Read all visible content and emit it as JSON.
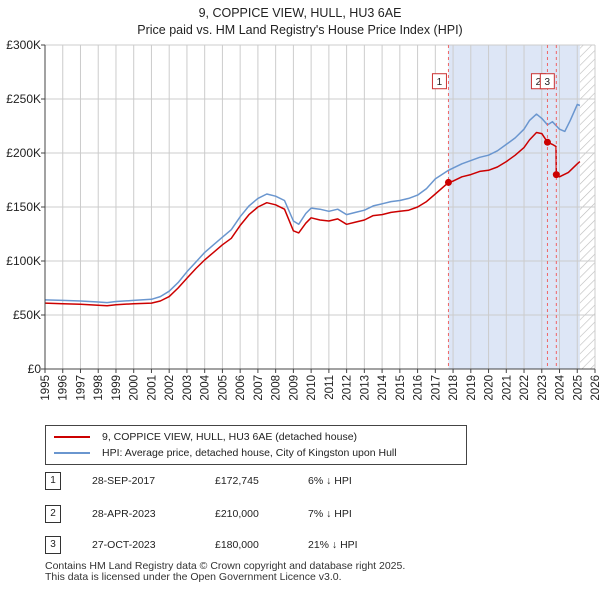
{
  "title": {
    "line1": "9, COPPICE VIEW, HULL, HU3 6AE",
    "line2": "Price paid vs. HM Land Registry's House Price Index (HPI)"
  },
  "colors": {
    "price_line": "#cc0000",
    "hpi_line": "#6a96cf",
    "shade": "#dde6f6",
    "grid": "#cccccc",
    "marker_line": "#ee6666"
  },
  "chart_data": {
    "type": "line",
    "xlim": [
      1995.0,
      2026.0
    ],
    "ylim": [
      0,
      300000
    ],
    "y_ticks": [
      {
        "value": 0,
        "label": "£0"
      },
      {
        "value": 50000,
        "label": "£50K"
      },
      {
        "value": 100000,
        "label": "£100K"
      },
      {
        "value": 150000,
        "label": "£150K"
      },
      {
        "value": 200000,
        "label": "£200K"
      },
      {
        "value": 250000,
        "label": "£250K"
      },
      {
        "value": 300000,
        "label": "£300K"
      }
    ],
    "x_ticks": [
      "1995",
      "1996",
      "1997",
      "1998",
      "1999",
      "2000",
      "2001",
      "2002",
      "2003",
      "2004",
      "2005",
      "2006",
      "2007",
      "2008",
      "2009",
      "2010",
      "2011",
      "2012",
      "2013",
      "2014",
      "2015",
      "2016",
      "2017",
      "2018",
      "2019",
      "2020",
      "2021",
      "2022",
      "2023",
      "2024",
      "2025",
      "2026"
    ],
    "shaded_range": [
      2017.74,
      2025.15
    ],
    "hatched_from": 2025.15,
    "series": [
      {
        "name": "9, COPPICE VIEW, HULL, HU3 6AE (detached house)",
        "color": "#cc0000",
        "points": [
          [
            1995.0,
            61000
          ],
          [
            1996.0,
            60500
          ],
          [
            1997.0,
            60000
          ],
          [
            1998.0,
            59000
          ],
          [
            1998.5,
            58500
          ],
          [
            1999.0,
            59500
          ],
          [
            2000.0,
            60500
          ],
          [
            2001.0,
            61000
          ],
          [
            2001.5,
            63000
          ],
          [
            2002.0,
            67000
          ],
          [
            2002.5,
            75000
          ],
          [
            2003.0,
            84000
          ],
          [
            2003.5,
            93000
          ],
          [
            2004.0,
            101000
          ],
          [
            2004.5,
            108000
          ],
          [
            2005.0,
            115000
          ],
          [
            2005.5,
            121000
          ],
          [
            2006.0,
            133000
          ],
          [
            2006.5,
            143000
          ],
          [
            2007.0,
            150000
          ],
          [
            2007.5,
            154000
          ],
          [
            2008.0,
            152000
          ],
          [
            2008.5,
            148000
          ],
          [
            2009.0,
            128000
          ],
          [
            2009.3,
            126000
          ],
          [
            2009.7,
            135000
          ],
          [
            2010.0,
            140000
          ],
          [
            2010.5,
            138000
          ],
          [
            2011.0,
            137000
          ],
          [
            2011.5,
            139000
          ],
          [
            2012.0,
            134000
          ],
          [
            2012.5,
            136000
          ],
          [
            2013.0,
            138000
          ],
          [
            2013.5,
            142000
          ],
          [
            2014.0,
            143000
          ],
          [
            2014.5,
            145000
          ],
          [
            2015.0,
            146000
          ],
          [
            2015.5,
            147000
          ],
          [
            2016.0,
            150000
          ],
          [
            2016.5,
            155000
          ],
          [
            2017.0,
            162000
          ],
          [
            2017.74,
            172745
          ],
          [
            2018.0,
            174000
          ],
          [
            2018.5,
            178000
          ],
          [
            2019.0,
            180000
          ],
          [
            2019.5,
            183000
          ],
          [
            2020.0,
            184000
          ],
          [
            2020.5,
            187000
          ],
          [
            2021.0,
            192000
          ],
          [
            2021.5,
            198000
          ],
          [
            2022.0,
            205000
          ],
          [
            2022.3,
            212000
          ],
          [
            2022.7,
            219000
          ],
          [
            2023.0,
            218000
          ],
          [
            2023.32,
            210000
          ],
          [
            2023.6,
            208000
          ],
          [
            2023.8,
            206000
          ],
          [
            2023.82,
            180000
          ],
          [
            2024.0,
            178000
          ],
          [
            2024.5,
            182000
          ],
          [
            2025.0,
            190000
          ],
          [
            2025.15,
            192000
          ]
        ]
      },
      {
        "name": "HPI: Average price, detached house, City of Kingston upon Hull",
        "color": "#6a96cf",
        "points": [
          [
            1995.0,
            64000
          ],
          [
            1996.0,
            63500
          ],
          [
            1997.0,
            63000
          ],
          [
            1998.0,
            62000
          ],
          [
            1998.5,
            61500
          ],
          [
            1999.0,
            62500
          ],
          [
            2000.0,
            63500
          ],
          [
            2001.0,
            64500
          ],
          [
            2001.5,
            67000
          ],
          [
            2002.0,
            72000
          ],
          [
            2002.5,
            80000
          ],
          [
            2003.0,
            90000
          ],
          [
            2003.5,
            99000
          ],
          [
            2004.0,
            108000
          ],
          [
            2004.5,
            115000
          ],
          [
            2005.0,
            122000
          ],
          [
            2005.5,
            129000
          ],
          [
            2006.0,
            141000
          ],
          [
            2006.5,
            151000
          ],
          [
            2007.0,
            158000
          ],
          [
            2007.5,
            162000
          ],
          [
            2008.0,
            160000
          ],
          [
            2008.5,
            156000
          ],
          [
            2009.0,
            137000
          ],
          [
            2009.3,
            134000
          ],
          [
            2009.7,
            144000
          ],
          [
            2010.0,
            149000
          ],
          [
            2010.5,
            148000
          ],
          [
            2011.0,
            146000
          ],
          [
            2011.5,
            148000
          ],
          [
            2012.0,
            143000
          ],
          [
            2012.5,
            145000
          ],
          [
            2013.0,
            147000
          ],
          [
            2013.5,
            151000
          ],
          [
            2014.0,
            153000
          ],
          [
            2014.5,
            155000
          ],
          [
            2015.0,
            156000
          ],
          [
            2015.5,
            158000
          ],
          [
            2016.0,
            161000
          ],
          [
            2016.5,
            167000
          ],
          [
            2017.0,
            176000
          ],
          [
            2017.74,
            184000
          ],
          [
            2018.0,
            186000
          ],
          [
            2018.5,
            190000
          ],
          [
            2019.0,
            193000
          ],
          [
            2019.5,
            196000
          ],
          [
            2020.0,
            198000
          ],
          [
            2020.5,
            202000
          ],
          [
            2021.0,
            208000
          ],
          [
            2021.5,
            214000
          ],
          [
            2022.0,
            222000
          ],
          [
            2022.3,
            230000
          ],
          [
            2022.7,
            236000
          ],
          [
            2023.0,
            232000
          ],
          [
            2023.32,
            226000
          ],
          [
            2023.6,
            229000
          ],
          [
            2024.0,
            222000
          ],
          [
            2024.3,
            220000
          ],
          [
            2024.6,
            230000
          ],
          [
            2025.0,
            245000
          ],
          [
            2025.15,
            244000
          ]
        ]
      }
    ],
    "markers": [
      {
        "label": "1",
        "x": 2017.74,
        "value": 172745,
        "box_value": 266000
      },
      {
        "label": "2",
        "x": 2023.32,
        "value": 210000,
        "box_value": 266000
      },
      {
        "label": "3",
        "x": 2023.82,
        "value": 180000,
        "box_value": 266000
      }
    ]
  },
  "legend": {
    "items": [
      {
        "label": "9, COPPICE VIEW, HULL, HU3 6AE (detached house)"
      },
      {
        "label": "HPI: Average price, detached house, City of Kingston upon Hull"
      }
    ]
  },
  "transactions": [
    {
      "num": "1",
      "date": "28-SEP-2017",
      "price": "£172,745",
      "hpi": "6% ↓ HPI"
    },
    {
      "num": "2",
      "date": "28-APR-2023",
      "price": "£210,000",
      "hpi": "7% ↓ HPI"
    },
    {
      "num": "3",
      "date": "27-OCT-2023",
      "price": "£180,000",
      "hpi": "21% ↓ HPI"
    }
  ],
  "footer": {
    "line1": "Contains HM Land Registry data © Crown copyright and database right 2025.",
    "line2": "This data is licensed under the Open Government Licence v3.0."
  }
}
